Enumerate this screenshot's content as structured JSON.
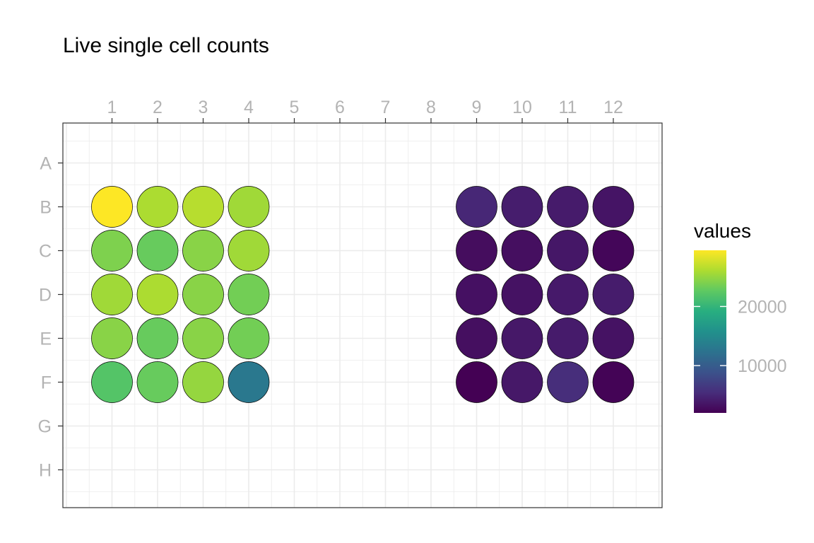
{
  "chart_data": {
    "type": "heatmap",
    "title": "Live single cell counts",
    "x_ticks": [
      "1",
      "2",
      "3",
      "4",
      "5",
      "6",
      "7",
      "8",
      "9",
      "10",
      "11",
      "12"
    ],
    "y_ticks": [
      "A",
      "B",
      "C",
      "D",
      "E",
      "F",
      "G",
      "H"
    ],
    "grid": true,
    "legend": {
      "title": "values",
      "position": "right",
      "labels": [
        "20000",
        "10000"
      ],
      "label_values": [
        20000,
        10000
      ],
      "range": [
        2000,
        29500
      ],
      "colormap": "viridis"
    },
    "wells": [
      {
        "row": "B",
        "col": 1,
        "value": 29500
      },
      {
        "row": "B",
        "col": 2,
        "value": 26000
      },
      {
        "row": "B",
        "col": 3,
        "value": 26500
      },
      {
        "row": "B",
        "col": 4,
        "value": 25500
      },
      {
        "row": "B",
        "col": 9,
        "value": 5000
      },
      {
        "row": "B",
        "col": 10,
        "value": 4200
      },
      {
        "row": "B",
        "col": 11,
        "value": 4000
      },
      {
        "row": "B",
        "col": 12,
        "value": 3500
      },
      {
        "row": "C",
        "col": 1,
        "value": 24000
      },
      {
        "row": "C",
        "col": 2,
        "value": 23000
      },
      {
        "row": "C",
        "col": 3,
        "value": 24500
      },
      {
        "row": "C",
        "col": 4,
        "value": 25500
      },
      {
        "row": "C",
        "col": 9,
        "value": 2900
      },
      {
        "row": "C",
        "col": 10,
        "value": 3100
      },
      {
        "row": "C",
        "col": 11,
        "value": 3700
      },
      {
        "row": "C",
        "col": 12,
        "value": 2400
      },
      {
        "row": "D",
        "col": 1,
        "value": 25500
      },
      {
        "row": "D",
        "col": 2,
        "value": 26000
      },
      {
        "row": "D",
        "col": 3,
        "value": 24500
      },
      {
        "row": "D",
        "col": 4,
        "value": 23500
      },
      {
        "row": "D",
        "col": 9,
        "value": 3200
      },
      {
        "row": "D",
        "col": 10,
        "value": 3300
      },
      {
        "row": "D",
        "col": 11,
        "value": 3900
      },
      {
        "row": "D",
        "col": 12,
        "value": 4100
      },
      {
        "row": "E",
        "col": 1,
        "value": 24500
      },
      {
        "row": "E",
        "col": 2,
        "value": 23000
      },
      {
        "row": "E",
        "col": 3,
        "value": 24500
      },
      {
        "row": "E",
        "col": 4,
        "value": 23500
      },
      {
        "row": "E",
        "col": 9,
        "value": 3100
      },
      {
        "row": "E",
        "col": 10,
        "value": 3800
      },
      {
        "row": "E",
        "col": 11,
        "value": 4000
      },
      {
        "row": "E",
        "col": 12,
        "value": 3300
      },
      {
        "row": "F",
        "col": 1,
        "value": 22000
      },
      {
        "row": "F",
        "col": 2,
        "value": 23000
      },
      {
        "row": "F",
        "col": 3,
        "value": 25000
      },
      {
        "row": "F",
        "col": 4,
        "value": 13000
      },
      {
        "row": "F",
        "col": 9,
        "value": 2000
      },
      {
        "row": "F",
        "col": 10,
        "value": 3800
      },
      {
        "row": "F",
        "col": 11,
        "value": 5500
      },
      {
        "row": "F",
        "col": 12,
        "value": 2200
      }
    ]
  }
}
